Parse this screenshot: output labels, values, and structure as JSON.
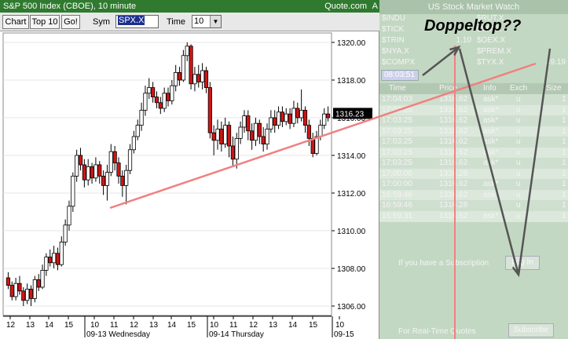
{
  "chart": {
    "title": "S&P 500 Index (CBOE), 10 minute",
    "source": "Quote.com",
    "corner_tag": "A",
    "toolbar": {
      "chart_label": "Chart",
      "top10_label": "Top 10",
      "go_label": "Go!",
      "sym_label": "Sym",
      "sym_value": "SPX.X",
      "time_label": "Time",
      "time_value": "10"
    },
    "last_price": "1316.23",
    "y_ticks": [
      "1320.00",
      "1318.00",
      "1316.00",
      "1314.00",
      "1312.00",
      "1310.00",
      "1308.00",
      "1306.00"
    ],
    "x_ticks": [
      "12",
      "13",
      "14",
      "15",
      "10",
      "11",
      "12",
      "13",
      "14",
      "15",
      "10",
      "11",
      "12",
      "13",
      "14",
      "15",
      "10"
    ],
    "date_labels": [
      "09-13 Wednesday",
      "09-14 Thursday",
      "09-15"
    ]
  },
  "chart_data": {
    "type": "candlestick",
    "ylim": [
      1305.5,
      1320.5
    ],
    "candles": [
      [
        1307.5,
        1307.1,
        1307.8,
        1306.9
      ],
      [
        1307.1,
        1306.5,
        1307.3,
        1306.3
      ],
      [
        1306.5,
        1307.2,
        1307.5,
        1306.3
      ],
      [
        1307.2,
        1306.8,
        1307.6,
        1306.6
      ],
      [
        1306.8,
        1306.3,
        1307.0,
        1306.0
      ],
      [
        1306.3,
        1306.9,
        1307.2,
        1306.1
      ],
      [
        1306.9,
        1306.4,
        1307.1,
        1306.0
      ],
      [
        1306.4,
        1307.4,
        1307.6,
        1306.2
      ],
      [
        1307.4,
        1307.0,
        1307.7,
        1306.8
      ],
      [
        1307.0,
        1307.9,
        1308.2,
        1306.9
      ],
      [
        1307.9,
        1308.6,
        1308.8,
        1307.6
      ],
      [
        1308.6,
        1308.3,
        1309.0,
        1308.1
      ],
      [
        1308.3,
        1308.8,
        1309.2,
        1308.0
      ],
      [
        1308.8,
        1308.2,
        1309.1,
        1307.9
      ],
      [
        1308.2,
        1309.4,
        1309.7,
        1308.1
      ],
      [
        1309.4,
        1310.3,
        1310.6,
        1309.2
      ],
      [
        1310.3,
        1311.3,
        1311.6,
        1310.0
      ],
      [
        1311.3,
        1312.9,
        1313.1,
        1311.0
      ],
      [
        1312.9,
        1314.0,
        1314.3,
        1312.6
      ],
      [
        1314.0,
        1313.5,
        1314.4,
        1313.2
      ],
      [
        1313.5,
        1312.7,
        1313.8,
        1312.3
      ],
      [
        1312.7,
        1313.4,
        1313.8,
        1312.4
      ],
      [
        1313.4,
        1312.8,
        1313.6,
        1312.5
      ],
      [
        1312.8,
        1313.5,
        1313.9,
        1312.6
      ],
      [
        1313.5,
        1312.9,
        1313.7,
        1312.5
      ],
      [
        1312.9,
        1312.4,
        1313.2,
        1311.9
      ],
      [
        1312.4,
        1313.1,
        1313.5,
        1311.6
      ],
      [
        1313.1,
        1314.2,
        1314.6,
        1312.9
      ],
      [
        1314.2,
        1313.6,
        1314.5,
        1313.2
      ],
      [
        1313.6,
        1312.9,
        1313.9,
        1312.5
      ],
      [
        1312.9,
        1312.4,
        1313.2,
        1311.8
      ],
      [
        1312.4,
        1313.2,
        1313.5,
        1311.4
      ],
      [
        1313.2,
        1314.3,
        1314.6,
        1313.0
      ],
      [
        1314.3,
        1315.0,
        1315.3,
        1314.1
      ],
      [
        1315.0,
        1315.6,
        1315.9,
        1314.8
      ],
      [
        1315.6,
        1316.4,
        1316.8,
        1315.3
      ],
      [
        1316.4,
        1317.3,
        1317.7,
        1316.1
      ],
      [
        1317.3,
        1317.6,
        1318.1,
        1317.0
      ],
      [
        1317.6,
        1317.1,
        1317.9,
        1316.8
      ],
      [
        1317.1,
        1316.8,
        1317.4,
        1316.5
      ],
      [
        1316.8,
        1316.5,
        1317.1,
        1316.2
      ],
      [
        1316.5,
        1317.3,
        1317.6,
        1316.3
      ],
      [
        1317.3,
        1316.9,
        1317.6,
        1316.6
      ],
      [
        1316.9,
        1317.7,
        1318.0,
        1316.7
      ],
      [
        1317.7,
        1318.4,
        1318.8,
        1317.4
      ],
      [
        1318.4,
        1318.0,
        1318.7,
        1317.7
      ],
      [
        1318.0,
        1319.3,
        1319.6,
        1317.9
      ],
      [
        1319.3,
        1319.8,
        1320.0,
        1319.0
      ],
      [
        1319.8,
        1317.8,
        1319.9,
        1317.5
      ],
      [
        1317.8,
        1318.3,
        1318.7,
        1317.4
      ],
      [
        1318.3,
        1317.9,
        1318.8,
        1317.6
      ],
      [
        1317.9,
        1318.5,
        1318.9,
        1317.5
      ],
      [
        1318.5,
        1317.6,
        1318.7,
        1317.3
      ],
      [
        1317.6,
        1315.2,
        1317.9,
        1314.9
      ],
      [
        1315.2,
        1314.8,
        1315.6,
        1314.0
      ],
      [
        1314.8,
        1315.4,
        1315.9,
        1314.3
      ],
      [
        1315.4,
        1314.6,
        1315.8,
        1314.2
      ],
      [
        1314.6,
        1315.6,
        1316.0,
        1314.4
      ],
      [
        1315.6,
        1314.5,
        1315.8,
        1313.9
      ],
      [
        1314.5,
        1313.8,
        1315.0,
        1313.4
      ],
      [
        1313.8,
        1314.9,
        1315.2,
        1313.3
      ],
      [
        1314.9,
        1315.5,
        1315.8,
        1314.6
      ],
      [
        1315.5,
        1316.1,
        1316.4,
        1315.2
      ],
      [
        1316.1,
        1315.3,
        1316.4,
        1314.8
      ],
      [
        1315.3,
        1314.8,
        1315.7,
        1314.3
      ],
      [
        1314.8,
        1315.7,
        1316.0,
        1314.5
      ],
      [
        1315.7,
        1315.0,
        1315.9,
        1314.6
      ],
      [
        1315.0,
        1314.6,
        1315.5,
        1314.2
      ],
      [
        1314.6,
        1315.4,
        1315.7,
        1314.3
      ],
      [
        1315.4,
        1316.0,
        1316.4,
        1315.2
      ],
      [
        1316.0,
        1315.6,
        1316.4,
        1315.2
      ],
      [
        1315.6,
        1316.3,
        1316.6,
        1315.4
      ],
      [
        1316.3,
        1315.8,
        1316.6,
        1315.5
      ],
      [
        1315.8,
        1316.2,
        1316.5,
        1315.6
      ],
      [
        1316.2,
        1315.7,
        1316.5,
        1315.4
      ],
      [
        1315.7,
        1316.5,
        1316.9,
        1315.5
      ],
      [
        1316.5,
        1316.0,
        1316.8,
        1315.7
      ],
      [
        1316.0,
        1316.4,
        1317.5,
        1315.8
      ],
      [
        1316.4,
        1315.6,
        1316.6,
        1315.2
      ],
      [
        1315.6,
        1314.9,
        1315.9,
        1314.5
      ],
      [
        1314.9,
        1314.1,
        1315.2,
        1313.9
      ],
      [
        1314.1,
        1315.0,
        1315.3,
        1314.0
      ],
      [
        1315.0,
        1315.6,
        1315.9,
        1314.8
      ],
      [
        1315.6,
        1316.2,
        1316.5,
        1315.4
      ],
      [
        1316.2,
        1316.0,
        1316.6,
        1315.8
      ]
    ]
  },
  "watch": {
    "title": "US Stock Market Watch",
    "quotes": [
      {
        "sym": "$INDU",
        "val": "",
        "sym2": "$RUT.X",
        "val2": ""
      },
      {
        "sym": "$TICK",
        "val": "",
        "sym2": "$VIX.X",
        "val2": ""
      },
      {
        "sym": "$TRIN",
        "val": "1.10",
        "sym2": "$OEX.X",
        "val2": ""
      },
      {
        "sym": "$NYA.X",
        "val": "",
        "sym2": "$PREM.X",
        "val2": ""
      },
      {
        "sym": "$COMPX",
        "val": "",
        "sym2": "$TYX.X",
        "val2": "49.19"
      }
    ],
    "clock": "08:03:51",
    "columns": [
      "Time",
      "Price",
      "Info",
      "Exch",
      "Size"
    ],
    "trades": [
      {
        "time": "17:04:03",
        "price": "1316.62",
        "info": "ask*",
        "exch": "u",
        "size": "1"
      },
      {
        "time": "17:03:25",
        "price": "1316.62",
        "info": "ask*",
        "exch": "u",
        "size": "1"
      },
      {
        "time": "17:03:25",
        "price": "1316.62",
        "info": "ask*",
        "exch": "u",
        "size": "1"
      },
      {
        "time": "17:03:25",
        "price": "1316.62",
        "info": "ask*",
        "exch": "u",
        "size": "1"
      },
      {
        "time": "17:03:25",
        "price": "1316.62",
        "info": "ask*",
        "exch": "u",
        "size": "1"
      },
      {
        "time": "17:03:25",
        "price": "1316.62",
        "info": "ask*",
        "exch": "u",
        "size": "1"
      },
      {
        "time": "17:03:25",
        "price": "1316.62",
        "info": "ask*",
        "exch": "u",
        "size": "1"
      },
      {
        "time": "17:00:00",
        "price": "1316.28",
        "info": "",
        "exch": "u",
        "size": "1"
      },
      {
        "time": "17:00:00",
        "price": "1316.62",
        "info": "ask*",
        "exch": "u",
        "size": "1"
      },
      {
        "time": "16:59:46",
        "price": "1316.62",
        "info": "ask*",
        "exch": "u",
        "size": "1"
      },
      {
        "time": "16:59:46",
        "price": "1316.28",
        "info": "",
        "exch": "u",
        "size": "1"
      },
      {
        "time": "16:59:31",
        "price": "1316.62",
        "info": "ask*",
        "exch": "u",
        "size": "1"
      }
    ],
    "subscription_msg": "If you have a Subscription",
    "login_label": "Log In",
    "realtime_msg": "For Real-Time Quotes",
    "subscribe_label": "Subscribe"
  },
  "annotation": {
    "text": "Doppeltop??",
    "trendline_color": "#f08080",
    "vertical_line_color": "#f08080",
    "arrow_color": "#555555"
  }
}
